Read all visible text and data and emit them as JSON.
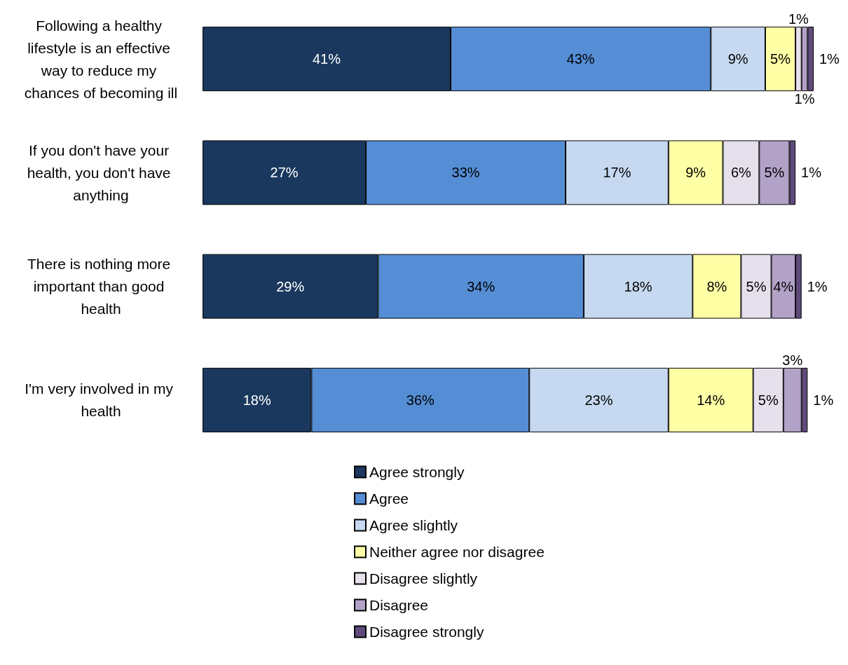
{
  "chart_data": {
    "type": "bar",
    "orientation": "horizontal",
    "stacked": true,
    "legend": "bottom",
    "categories": [
      "Following a healthy lifestyle is an effective way to reduce my chances of becoming ill",
      "If you don't have your health, you don't have anything",
      "There is nothing more important than good health",
      "I'm very involved in my health"
    ],
    "series": [
      {
        "name": "Agree strongly",
        "color": "#1a385e",
        "values": [
          41,
          27,
          29,
          18
        ],
        "value_labels": [
          "41%",
          "27%",
          "29%",
          "18%"
        ]
      },
      {
        "name": "Agree",
        "color": "#558ed5",
        "values": [
          43,
          33,
          34,
          36
        ],
        "value_labels": [
          "43%",
          "33%",
          "34%",
          "36%"
        ]
      },
      {
        "name": "Agree slightly",
        "color": "#c6d9f1",
        "values": [
          9,
          17,
          18,
          23
        ],
        "value_labels": [
          "9%",
          "17%",
          "18%",
          "23%"
        ]
      },
      {
        "name": "Neither agree nor disagree",
        "color": "#ffffa6",
        "values": [
          5,
          9,
          8,
          14
        ],
        "value_labels": [
          "5%",
          "9%",
          "8%",
          "14%"
        ]
      },
      {
        "name": "Disagree slightly",
        "color": "#e6e0ec",
        "values": [
          1,
          6,
          5,
          5
        ],
        "value_labels": [
          "1%",
          "6%",
          "5%",
          "5%"
        ]
      },
      {
        "name": "Disagree",
        "color": "#b3a2c7",
        "values": [
          1,
          5,
          4,
          3
        ],
        "value_labels": [
          "1%",
          "5%",
          "4%",
          "3%"
        ]
      },
      {
        "name": "Disagree strongly",
        "color": "#604a7b",
        "values": [
          1,
          1,
          1,
          1
        ],
        "value_labels": [
          "1%",
          "1%",
          "1%",
          "1%"
        ]
      }
    ]
  }
}
